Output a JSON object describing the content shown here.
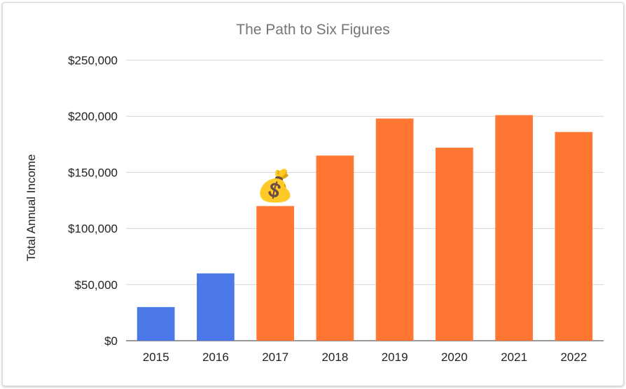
{
  "chart_data": {
    "type": "bar",
    "title": "The Path to Six Figures",
    "xlabel": "",
    "ylabel": "Total Annual Income",
    "categories": [
      "2015",
      "2016",
      "2017",
      "2018",
      "2019",
      "2020",
      "2021",
      "2022"
    ],
    "values": [
      30000,
      60000,
      120000,
      165000,
      198000,
      172000,
      201000,
      186000
    ],
    "bar_colors": [
      "#4a78e6",
      "#4a78e6",
      "#ff7733",
      "#ff7733",
      "#ff7733",
      "#ff7733",
      "#ff7733",
      "#ff7733"
    ],
    "ylim": [
      0,
      250000
    ],
    "yticks": [
      0,
      50000,
      100000,
      150000,
      200000,
      250000
    ],
    "ytick_labels": [
      "$0",
      "$50,000",
      "$100,000",
      "$150,000",
      "$200,000",
      "$250,000"
    ],
    "grid": true,
    "legend": "none",
    "annotation": {
      "icon": "money-bag-icon",
      "glyph": "💰",
      "category": "2017"
    }
  }
}
